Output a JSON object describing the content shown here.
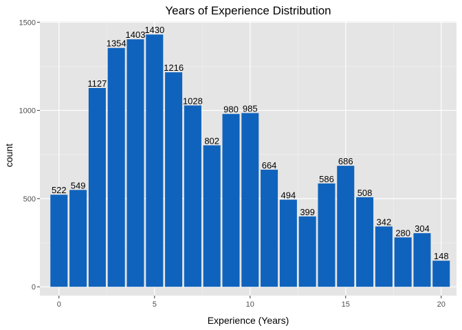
{
  "chart_data": {
    "type": "bar",
    "title": "Years of Experience Distribution",
    "xlabel": "Experience (Years)",
    "ylabel": "count",
    "x": [
      0,
      1,
      2,
      3,
      4,
      5,
      6,
      7,
      8,
      9,
      10,
      11,
      12,
      13,
      14,
      15,
      16,
      17,
      18,
      19,
      20
    ],
    "values": [
      522,
      549,
      1127,
      1354,
      1403,
      1430,
      1216,
      1028,
      802,
      980,
      985,
      664,
      494,
      399,
      586,
      686,
      508,
      342,
      280,
      304,
      148
    ],
    "data_labels": [
      "522",
      "549",
      "1127",
      "1354",
      "1403",
      "1430",
      "1216",
      "1028",
      "802",
      "980",
      "985",
      "664",
      "494",
      "399",
      "586",
      "686",
      "508",
      "342",
      "280",
      "304",
      "148"
    ],
    "xlim": [
      -1.0,
      20.8
    ],
    "ylim": [
      -50,
      1505
    ],
    "x_ticks": [
      0,
      5,
      10,
      15,
      20
    ],
    "x_tick_labels": [
      "0",
      "5",
      "10",
      "15",
      "20"
    ],
    "y_ticks": [
      0,
      500,
      1000,
      1500
    ],
    "y_tick_labels": [
      "0",
      "500",
      "1000",
      "1500"
    ],
    "grid": true,
    "legend": "none",
    "colors": {
      "bar": "#0f63bd",
      "panel_background": "#e5e5e5",
      "grid_major": "#ffffff",
      "grid_minor": "#f2f2f2",
      "tick_label": "#4d4d4d"
    }
  }
}
